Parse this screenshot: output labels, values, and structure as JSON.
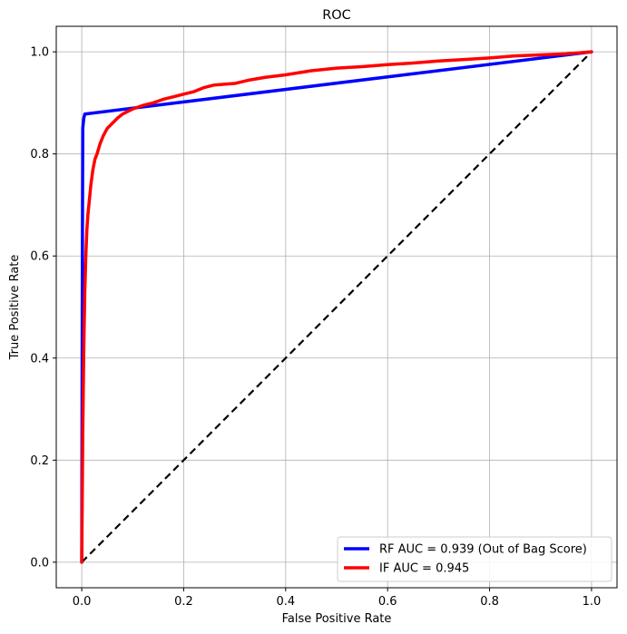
{
  "chart_data": {
    "type": "line",
    "title": "ROC",
    "xlabel": "False Positive Rate",
    "ylabel": "True Positive Rate",
    "xlim": [
      -0.05,
      1.05
    ],
    "ylim": [
      -0.05,
      1.05
    ],
    "xticks": [
      "0.0",
      "0.2",
      "0.4",
      "0.6",
      "0.8",
      "1.0"
    ],
    "yticks": [
      "0.0",
      "0.2",
      "0.4",
      "0.6",
      "0.8",
      "1.0"
    ],
    "grid": true,
    "legend": "lower-right",
    "series": [
      {
        "name": "RF  AUC = 0.939 (Out of Bag Score)",
        "color": "#0000ff",
        "points": [
          [
            0,
            0
          ],
          [
            0.001,
            0.5
          ],
          [
            0.002,
            0.85
          ],
          [
            0.004,
            0.87
          ],
          [
            0.006,
            0.878
          ],
          [
            1.0,
            1.0
          ]
        ]
      },
      {
        "name": "IF  AUC = 0.945",
        "color": "#ff0000",
        "points": [
          [
            0,
            0
          ],
          [
            0.002,
            0.25
          ],
          [
            0.004,
            0.42
          ],
          [
            0.006,
            0.53
          ],
          [
            0.008,
            0.6
          ],
          [
            0.01,
            0.65
          ],
          [
            0.012,
            0.68
          ],
          [
            0.015,
            0.71
          ],
          [
            0.018,
            0.74
          ],
          [
            0.022,
            0.77
          ],
          [
            0.026,
            0.79
          ],
          [
            0.03,
            0.8
          ],
          [
            0.036,
            0.82
          ],
          [
            0.042,
            0.835
          ],
          [
            0.05,
            0.85
          ],
          [
            0.06,
            0.86
          ],
          [
            0.07,
            0.87
          ],
          [
            0.08,
            0.878
          ],
          [
            0.09,
            0.883
          ],
          [
            0.1,
            0.888
          ],
          [
            0.12,
            0.895
          ],
          [
            0.14,
            0.9
          ],
          [
            0.16,
            0.907
          ],
          [
            0.18,
            0.912
          ],
          [
            0.2,
            0.917
          ],
          [
            0.22,
            0.922
          ],
          [
            0.24,
            0.93
          ],
          [
            0.26,
            0.935
          ],
          [
            0.3,
            0.938
          ],
          [
            0.33,
            0.945
          ],
          [
            0.36,
            0.95
          ],
          [
            0.4,
            0.955
          ],
          [
            0.45,
            0.963
          ],
          [
            0.5,
            0.968
          ],
          [
            0.55,
            0.971
          ],
          [
            0.6,
            0.975
          ],
          [
            0.65,
            0.978
          ],
          [
            0.7,
            0.982
          ],
          [
            0.75,
            0.985
          ],
          [
            0.8,
            0.988
          ],
          [
            0.85,
            0.992
          ],
          [
            0.9,
            0.994
          ],
          [
            0.95,
            0.996
          ],
          [
            1.0,
            1.0
          ]
        ]
      },
      {
        "name": "",
        "color": "#000000",
        "dashed": true,
        "points": [
          [
            0,
            0
          ],
          [
            1,
            1
          ]
        ]
      }
    ]
  }
}
